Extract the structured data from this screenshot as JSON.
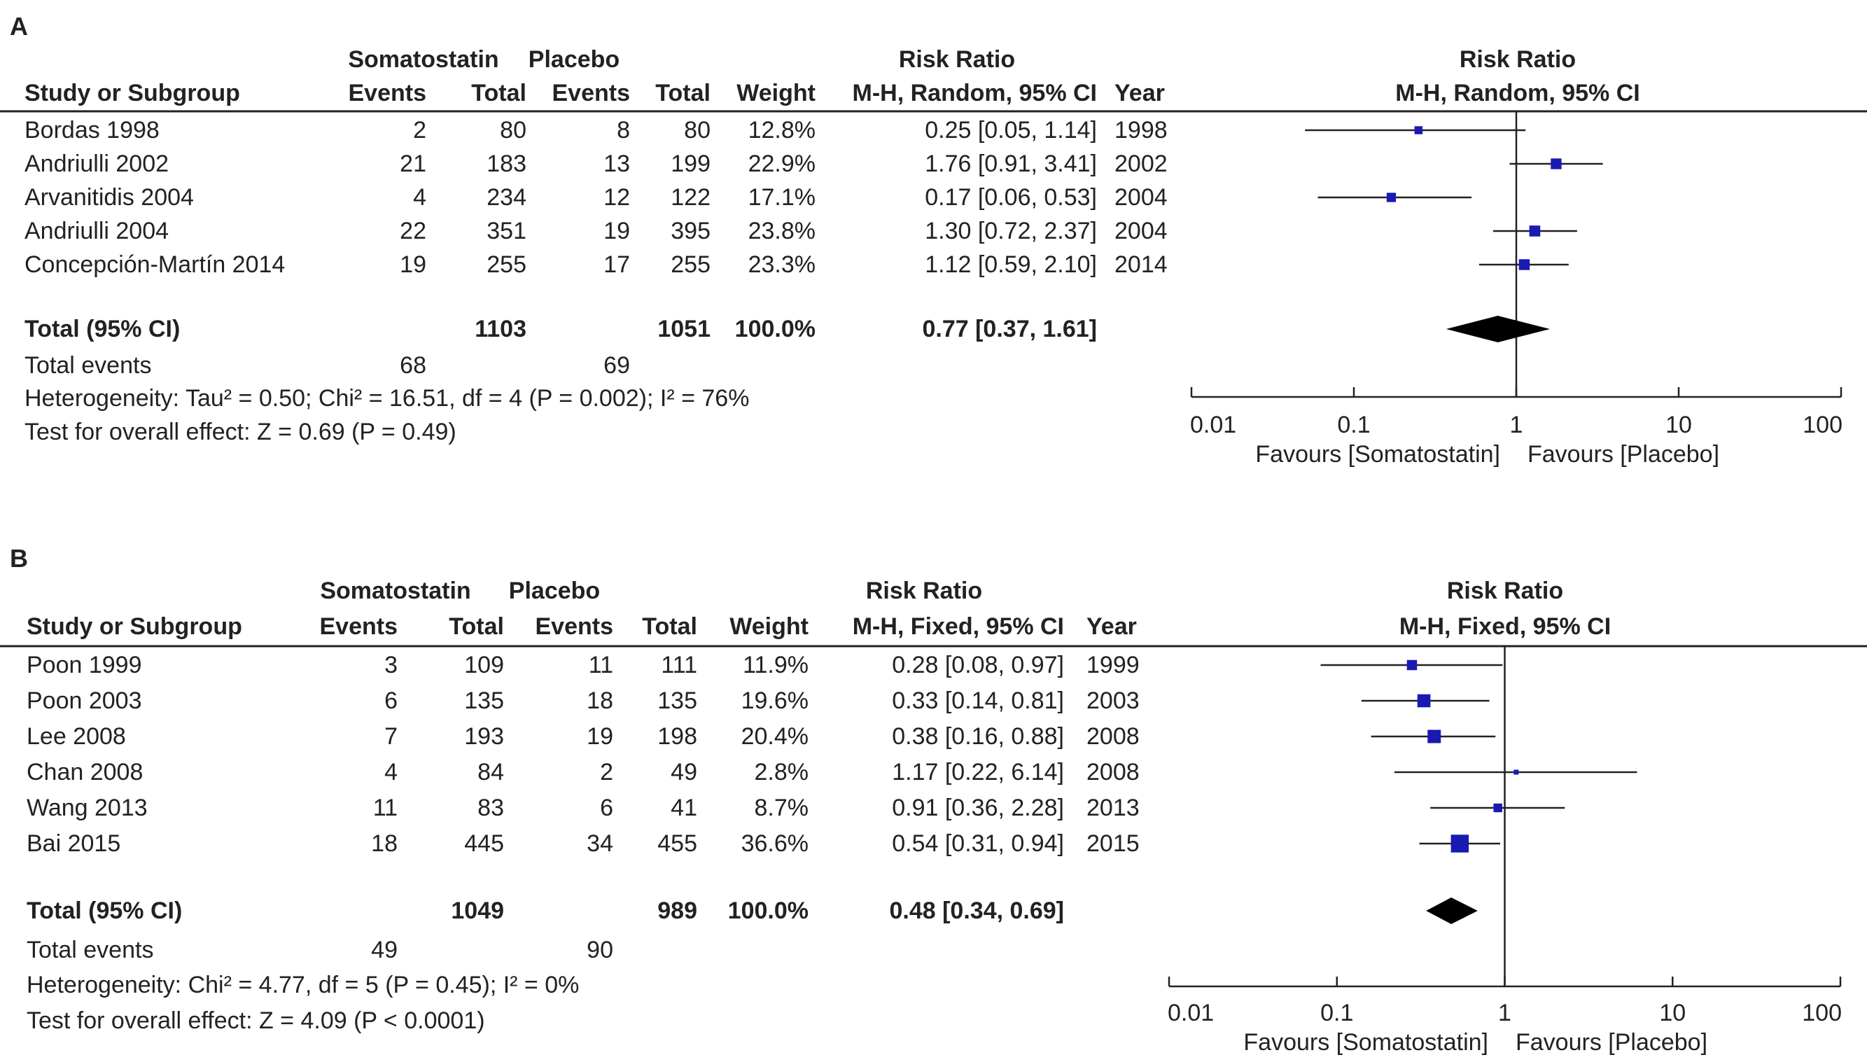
{
  "chart_data": [
    {
      "type": "forest",
      "panel_label": "A",
      "group1_name": "Somatostatin",
      "group2_name": "Placebo",
      "header": {
        "study": "Study or Subgroup",
        "events": "Events",
        "total": "Total",
        "weight": "Weight",
        "rr_title": "Risk Ratio",
        "rr_method": "M-H, Random, 95% CI",
        "year": "Year",
        "plot_title": "Risk Ratio",
        "plot_method": "M-H, Random, 95% CI"
      },
      "studies": [
        {
          "name": "Bordas 1998",
          "e1": "2",
          "n1": "80",
          "e2": "8",
          "n2": "80",
          "weight": "12.8%",
          "ci_text": "0.25 [0.05, 1.14]",
          "year": "1998",
          "rr": 0.25,
          "lo": 0.05,
          "hi": 1.14,
          "w": 12.8
        },
        {
          "name": "Andriulli 2002",
          "e1": "21",
          "n1": "183",
          "e2": "13",
          "n2": "199",
          "weight": "22.9%",
          "ci_text": "1.76 [0.91, 3.41]",
          "year": "2002",
          "rr": 1.76,
          "lo": 0.91,
          "hi": 3.41,
          "w": 22.9
        },
        {
          "name": "Arvanitidis 2004",
          "e1": "4",
          "n1": "234",
          "e2": "12",
          "n2": "122",
          "weight": "17.1%",
          "ci_text": "0.17 [0.06, 0.53]",
          "year": "2004",
          "rr": 0.17,
          "lo": 0.06,
          "hi": 0.53,
          "w": 17.1
        },
        {
          "name": "Andriulli 2004",
          "e1": "22",
          "n1": "351",
          "e2": "19",
          "n2": "395",
          "weight": "23.8%",
          "ci_text": "1.30 [0.72, 2.37]",
          "year": "2004",
          "rr": 1.3,
          "lo": 0.72,
          "hi": 2.37,
          "w": 23.8
        },
        {
          "name": "Concepción-Martín 2014",
          "e1": "19",
          "n1": "255",
          "e2": "17",
          "n2": "255",
          "weight": "23.3%",
          "ci_text": "1.12 [0.59, 2.10]",
          "year": "2014",
          "rr": 1.12,
          "lo": 0.59,
          "hi": 2.1,
          "w": 23.3
        }
      ],
      "total": {
        "label": "Total (95% CI)",
        "n1": "1103",
        "n2": "1051",
        "weight": "100.0%",
        "ci_text": "0.77 [0.37, 1.61]",
        "rr": 0.77,
        "lo": 0.37,
        "hi": 1.61
      },
      "total_events": {
        "label": "Total events",
        "e1": "68",
        "e2": "69"
      },
      "heterogeneity": "Heterogeneity: Tau² = 0.50; Chi² = 16.51, df = 4 (P = 0.002); I² = 76%",
      "overall_effect": "Test for overall effect: Z = 0.69 (P = 0.49)",
      "axis": {
        "scale": "log",
        "ticks": [
          "0.01",
          "0.1",
          "1",
          "10",
          "100"
        ],
        "tick_values": [
          0.01,
          0.1,
          1,
          10,
          100
        ],
        "xlim": [
          0.01,
          100
        ]
      },
      "favours_left": "Favours [Somatostatin]",
      "favours_right": "Favours [Placebo]"
    },
    {
      "type": "forest",
      "panel_label": "B",
      "group1_name": "Somatostatin",
      "group2_name": "Placebo",
      "header": {
        "study": "Study or Subgroup",
        "events": "Events",
        "total": "Total",
        "weight": "Weight",
        "rr_title": "Risk Ratio",
        "rr_method": "M-H, Fixed, 95% CI",
        "year": "Year",
        "plot_title": "Risk Ratio",
        "plot_method": "M-H, Fixed, 95% CI"
      },
      "studies": [
        {
          "name": "Poon 1999",
          "e1": "3",
          "n1": "109",
          "e2": "11",
          "n2": "111",
          "weight": "11.9%",
          "ci_text": "0.28 [0.08, 0.97]",
          "year": "1999",
          "rr": 0.28,
          "lo": 0.08,
          "hi": 0.97,
          "w": 11.9
        },
        {
          "name": "Poon 2003",
          "e1": "6",
          "n1": "135",
          "e2": "18",
          "n2": "135",
          "weight": "19.6%",
          "ci_text": "0.33 [0.14, 0.81]",
          "year": "2003",
          "rr": 0.33,
          "lo": 0.14,
          "hi": 0.81,
          "w": 19.6
        },
        {
          "name": "Lee 2008",
          "e1": "7",
          "n1": "193",
          "e2": "19",
          "n2": "198",
          "weight": "20.4%",
          "ci_text": "0.38 [0.16, 0.88]",
          "year": "2008",
          "rr": 0.38,
          "lo": 0.16,
          "hi": 0.88,
          "w": 20.4
        },
        {
          "name": "Chan 2008",
          "e1": "4",
          "n1": "84",
          "e2": "2",
          "n2": "49",
          "weight": "2.8%",
          "ci_text": "1.17 [0.22, 6.14]",
          "year": "2008",
          "rr": 1.17,
          "lo": 0.22,
          "hi": 6.14,
          "w": 2.8
        },
        {
          "name": "Wang 2013",
          "e1": "11",
          "n1": "83",
          "e2": "6",
          "n2": "41",
          "weight": "8.7%",
          "ci_text": "0.91 [0.36, 2.28]",
          "year": "2013",
          "rr": 0.91,
          "lo": 0.36,
          "hi": 2.28,
          "w": 8.7
        },
        {
          "name": "Bai 2015",
          "e1": "18",
          "n1": "445",
          "e2": "34",
          "n2": "455",
          "weight": "36.6%",
          "ci_text": "0.54 [0.31, 0.94]",
          "year": "2015",
          "rr": 0.54,
          "lo": 0.31,
          "hi": 0.94,
          "w": 36.6
        }
      ],
      "total": {
        "label": "Total (95% CI)",
        "n1": "1049",
        "n2": "989",
        "weight": "100.0%",
        "ci_text": "0.48 [0.34, 0.69]",
        "rr": 0.48,
        "lo": 0.34,
        "hi": 0.69
      },
      "total_events": {
        "label": "Total events",
        "e1": "49",
        "e2": "90"
      },
      "heterogeneity": "Heterogeneity: Chi² = 4.77, df = 5 (P = 0.45); I² = 0%",
      "overall_effect": "Test for overall effect: Z = 4.09 (P < 0.0001)",
      "axis": {
        "scale": "log",
        "ticks": [
          "0.01",
          "0.1",
          "1",
          "10",
          "100"
        ],
        "tick_values": [
          0.01,
          0.1,
          1,
          10,
          100
        ],
        "xlim": [
          0.01,
          100
        ]
      },
      "favours_left": "Favours [Somatostatin]",
      "favours_right": "Favours [Placebo]"
    }
  ],
  "colors": {
    "marker": "#1919b3",
    "ink": "#222222",
    "background": "#ffffff"
  }
}
